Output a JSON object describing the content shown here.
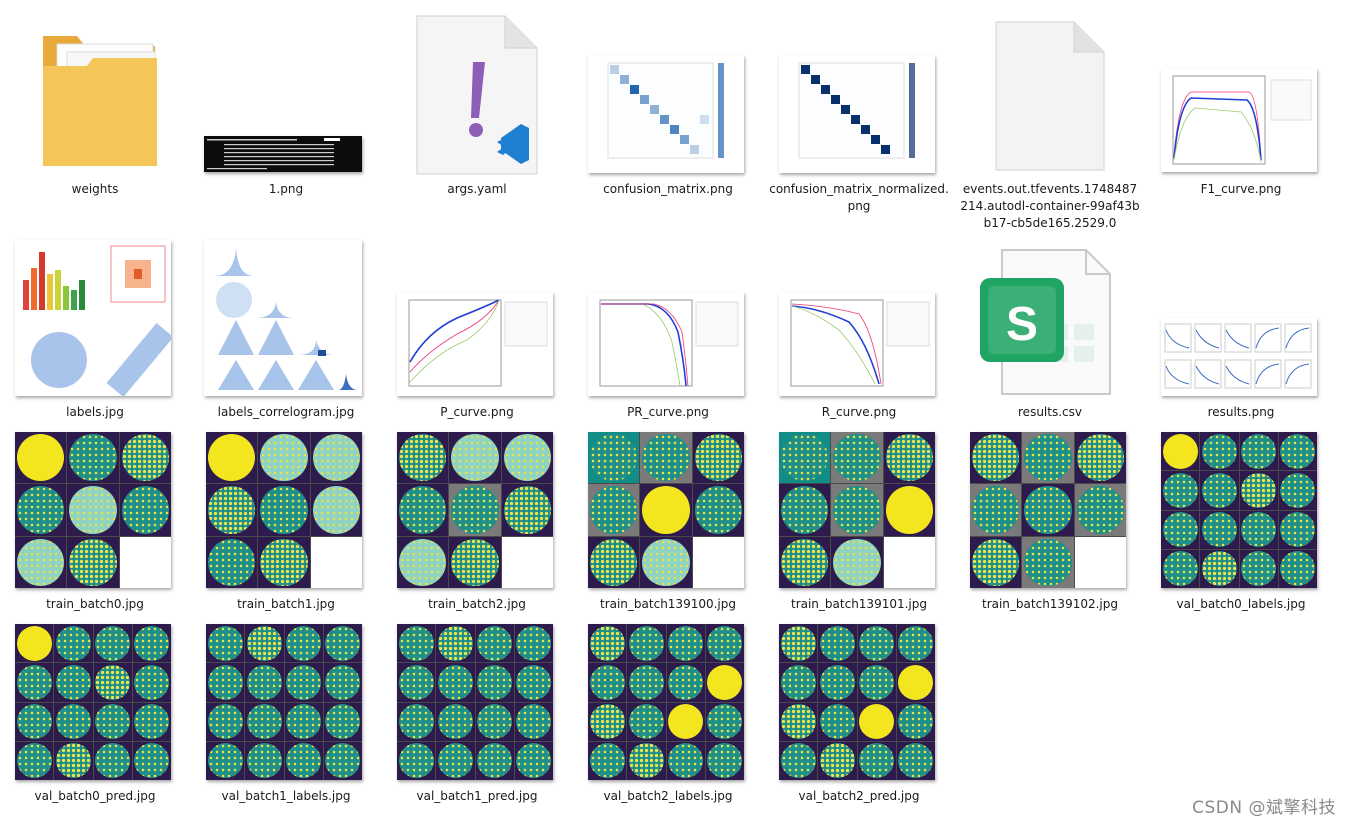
{
  "files": [
    {
      "name": "weights"
    },
    {
      "name": "1.png"
    },
    {
      "name": "args.yaml"
    },
    {
      "name": "confusion_matrix.png"
    },
    {
      "name": "confusion_matrix_normalized.png"
    },
    {
      "name": "events.out.tfevents.1748487214.autodl-container-99af43bb17-cb5de165.2529.0"
    },
    {
      "name": "F1_curve.png"
    },
    {
      "name": "labels.jpg"
    },
    {
      "name": "labels_correlogram.jpg"
    },
    {
      "name": "P_curve.png"
    },
    {
      "name": "PR_curve.png"
    },
    {
      "name": "R_curve.png"
    },
    {
      "name": "results.csv"
    },
    {
      "name": "results.png"
    },
    {
      "name": "train_batch0.jpg"
    },
    {
      "name": "train_batch1.jpg"
    },
    {
      "name": "train_batch2.jpg"
    },
    {
      "name": "train_batch139100.jpg"
    },
    {
      "name": "train_batch139101.jpg"
    },
    {
      "name": "train_batch139102.jpg"
    },
    {
      "name": "val_batch0_labels.jpg"
    },
    {
      "name": "val_batch0_pred.jpg"
    },
    {
      "name": "val_batch1_labels.jpg"
    },
    {
      "name": "val_batch1_pred.jpg"
    },
    {
      "name": "val_batch2_labels.jpg"
    },
    {
      "name": "val_batch2_pred.jpg"
    }
  ],
  "watermark": "CSDN @斌擎科技",
  "colors": {
    "folder": "#f2c14e",
    "vscode_blue": "#1f7fd1",
    "yaml_purple": "#8e5db5",
    "sheets_green": "#1fa463",
    "curve_blue": "#1f3fd6"
  }
}
